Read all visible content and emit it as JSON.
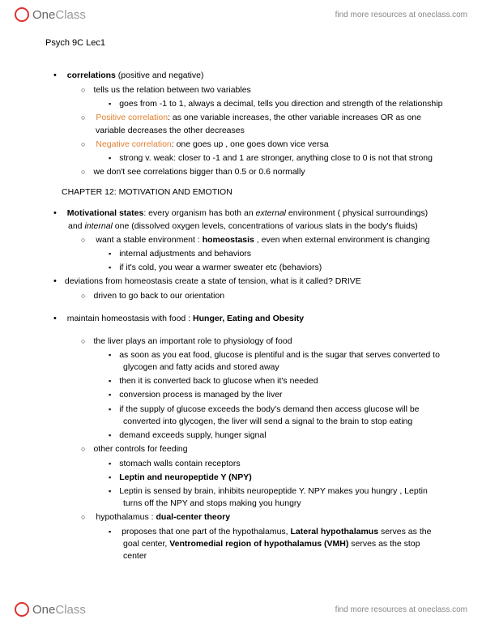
{
  "brand": {
    "one": "One",
    "class": "Class",
    "tagline": "find more resources at oneclass.com"
  },
  "doc_title": "Psych 9C Lec1",
  "chapter_title": "CHAPTER 12: MOTIVATION AND EMOTION",
  "section1": {
    "heading_bold": "correlations",
    "heading_rest": " (positive and negative)",
    "b1": "tells us the relation between two variables",
    "b1a": "goes from -1 to 1, always a decimal, tells you direction and strength of the relationship",
    "b2_label": "Positive correlation",
    "b2_rest": ": as one variable increases, the other variable increases OR as one variable decreases the other decreases",
    "b3_label": "Negative correlation",
    "b3_rest": ": one goes up , one goes down vice versa",
    "b3a": "strong v. weak: closer to -1 and 1 are stronger, anything close to 0 is not that strong",
    "b4": "we don't see correlations bigger than 0.5 or 0.6 normally"
  },
  "section2": {
    "heading_bold": "Motivational states",
    "heading_rest1": ": every organism has both an ",
    "heading_ital1": "external",
    "heading_rest2": " environment ( physical surroundings) and ",
    "heading_ital2": "internal",
    "heading_rest3": " one (dissolved oxygen levels, concentrations of various slats in the body's fluids)",
    "b1a": "want a stable environment : ",
    "b1a_bold": "homeostasis",
    "b1a_rest": " , even when external environment is changing",
    "b1a1": "internal adjustments and behaviors",
    "b1a2": "if it's cold, you wear a warmer sweater etc (behaviors)",
    "b2": "deviations from homeostasis create a state of tension, what is it called? DRIVE",
    "b2a": "driven to go back to our orientation"
  },
  "section3": {
    "heading_pre": "maintain homeostasis with food : ",
    "heading_bold": "Hunger, Eating and Obesity",
    "b1": "the liver plays an important role to physiology of food",
    "b1a": "as soon as you eat food, glucose is plentiful and is the sugar that serves converted to glycogen and fatty acids and stored away",
    "b1b": "then it is converted back to glucose when it's needed",
    "b1c": "conversion process is managed by the liver",
    "b1d": "if the supply of glucose exceeds the body's demand then access glucose will be converted into glycogen, the liver will send a signal to the brain to stop eating",
    "b1e": "demand exceeds supply, hunger signal",
    "b2": "other controls for feeding",
    "b2a": "stomach walls contain receptors",
    "b2b_bold": "Leptin and neuropeptide Y (NPY)",
    "b2c": "Leptin is sensed by brain, inhibits neuropeptide Y. NPY makes you hungry , Leptin turns off the NPY and stops making you hungry",
    "b3_pre": "hypothalamus : ",
    "b3_bold": "dual-center theory",
    "b3a_pre": "proposes that one part of the hypothalamus, ",
    "b3a_bold1": "Lateral hypothalamus",
    "b3a_mid": " serves as the goal center, ",
    "b3a_bold2": "Ventromedial region of hypothalamus (VMH) ",
    "b3a_end": "serves as the stop center"
  }
}
